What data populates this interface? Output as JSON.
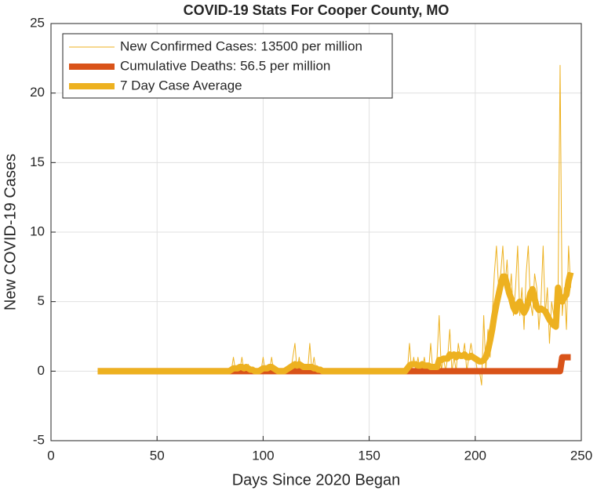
{
  "chart_data": {
    "type": "line",
    "title": "COVID-19 Stats For Cooper County, MO",
    "xlabel": "Days Since 2020 Began",
    "ylabel": "New COVID-19 Cases",
    "xlim": [
      0,
      250
    ],
    "ylim": [
      -5,
      25
    ],
    "xticks": [
      0,
      50,
      100,
      150,
      200,
      250
    ],
    "yticks": [
      -5,
      0,
      5,
      10,
      15,
      20,
      25
    ],
    "grid": true,
    "legend": "upper left",
    "x": [
      22,
      23,
      24,
      25,
      26,
      27,
      28,
      29,
      30,
      31,
      32,
      33,
      34,
      35,
      36,
      37,
      38,
      39,
      40,
      41,
      42,
      43,
      44,
      45,
      46,
      47,
      48,
      49,
      50,
      51,
      52,
      53,
      54,
      55,
      56,
      57,
      58,
      59,
      60,
      61,
      62,
      63,
      64,
      65,
      66,
      67,
      68,
      69,
      70,
      71,
      72,
      73,
      74,
      75,
      76,
      77,
      78,
      79,
      80,
      81,
      82,
      83,
      84,
      85,
      86,
      87,
      88,
      89,
      90,
      91,
      92,
      93,
      94,
      95,
      96,
      97,
      98,
      99,
      100,
      101,
      102,
      103,
      104,
      105,
      106,
      107,
      108,
      109,
      110,
      111,
      112,
      113,
      114,
      115,
      116,
      117,
      118,
      119,
      120,
      121,
      122,
      123,
      124,
      125,
      126,
      127,
      128,
      129,
      130,
      131,
      132,
      133,
      134,
      135,
      136,
      137,
      138,
      139,
      140,
      141,
      142,
      143,
      144,
      145,
      146,
      147,
      148,
      149,
      150,
      151,
      152,
      153,
      154,
      155,
      156,
      157,
      158,
      159,
      160,
      161,
      162,
      163,
      164,
      165,
      166,
      167,
      168,
      169,
      170,
      171,
      172,
      173,
      174,
      175,
      176,
      177,
      178,
      179,
      180,
      181,
      182,
      183,
      184,
      185,
      186,
      187,
      188,
      189,
      190,
      191,
      192,
      193,
      194,
      195,
      196,
      197,
      198,
      199,
      200,
      201,
      202,
      203,
      204,
      205,
      206,
      207,
      208,
      209,
      210,
      211,
      212,
      213,
      214,
      215,
      216,
      217,
      218,
      219,
      220,
      221,
      222,
      223,
      224,
      225,
      226,
      227,
      228,
      229,
      230,
      231,
      232,
      233,
      234,
      235,
      236,
      237,
      238,
      239,
      240,
      241,
      242,
      243,
      244,
      245
    ],
    "series": [
      {
        "name": "New Confirmed Cases: 13500 per million",
        "color": "#edb120",
        "width": 1,
        "values": [
          0,
          0,
          0,
          0,
          0,
          0,
          0,
          0,
          0,
          0,
          0,
          0,
          0,
          0,
          0,
          0,
          0,
          0,
          0,
          0,
          0,
          0,
          0,
          0,
          0,
          0,
          0,
          0,
          0,
          0,
          0,
          0,
          0,
          0,
          0,
          0,
          0,
          0,
          0,
          0,
          0,
          0,
          0,
          0,
          0,
          0,
          0,
          0,
          0,
          0,
          0,
          0,
          0,
          0,
          0,
          0,
          0,
          0,
          0,
          0,
          0,
          0,
          0,
          0,
          1,
          0,
          0,
          0,
          1,
          0,
          0,
          0.5,
          0,
          0,
          0,
          0,
          0,
          0,
          1,
          0,
          0,
          0,
          1,
          0,
          0,
          0,
          0,
          0,
          0,
          0,
          0,
          0,
          1,
          2,
          0,
          1,
          0,
          0,
          0,
          0,
          2,
          0,
          1,
          0,
          0,
          0,
          0,
          0,
          0,
          0,
          0,
          0,
          0,
          0,
          0,
          0,
          0,
          0,
          0,
          0,
          0,
          0,
          0,
          0,
          0,
          0,
          0,
          0,
          0,
          0,
          0,
          0,
          0,
          0,
          0,
          0,
          0,
          0,
          0,
          0,
          0,
          0,
          0,
          0,
          0,
          0,
          0,
          2,
          0,
          1,
          0,
          1,
          0,
          0,
          1,
          0,
          0,
          2,
          0,
          0,
          1,
          4,
          0,
          1,
          0,
          1,
          3,
          0,
          1,
          0,
          2,
          1,
          1,
          2,
          0,
          1,
          2,
          1,
          1,
          0,
          0,
          -1,
          4,
          0,
          3,
          1,
          4,
          7,
          9,
          6,
          7,
          9,
          6,
          8,
          5,
          7,
          4,
          6,
          9,
          4,
          6,
          3,
          7,
          9,
          5,
          4,
          7,
          6,
          3,
          5,
          9,
          4,
          6,
          2,
          5,
          4,
          3,
          5,
          22,
          4,
          6,
          3,
          9,
          6
        ]
      },
      {
        "name": "Cumulative Deaths: 56.5 per million",
        "color": "#d95319",
        "width": 8,
        "values": [
          0,
          0,
          0,
          0,
          0,
          0,
          0,
          0,
          0,
          0,
          0,
          0,
          0,
          0,
          0,
          0,
          0,
          0,
          0,
          0,
          0,
          0,
          0,
          0,
          0,
          0,
          0,
          0,
          0,
          0,
          0,
          0,
          0,
          0,
          0,
          0,
          0,
          0,
          0,
          0,
          0,
          0,
          0,
          0,
          0,
          0,
          0,
          0,
          0,
          0,
          0,
          0,
          0,
          0,
          0,
          0,
          0,
          0,
          0,
          0,
          0,
          0,
          0,
          0,
          0,
          0,
          0,
          0,
          0,
          0,
          0,
          0,
          0,
          0,
          0,
          0,
          0,
          0,
          0,
          0,
          0,
          0,
          0,
          0,
          0,
          0,
          0,
          0,
          0,
          0,
          0,
          0,
          0,
          0,
          0,
          0,
          0,
          0,
          0,
          0,
          0,
          0,
          0,
          0,
          0,
          0,
          0,
          0,
          0,
          0,
          0,
          0,
          0,
          0,
          0,
          0,
          0,
          0,
          0,
          0,
          0,
          0,
          0,
          0,
          0,
          0,
          0,
          0,
          0,
          0,
          0,
          0,
          0,
          0,
          0,
          0,
          0,
          0,
          0,
          0,
          0,
          0,
          0,
          0,
          0,
          0,
          0,
          0,
          0,
          0,
          0,
          0,
          0,
          0,
          0,
          0,
          0,
          0,
          0,
          0,
          0,
          0,
          0,
          0,
          0,
          0,
          0,
          0,
          0,
          0,
          0,
          0,
          0,
          0,
          0,
          0,
          0,
          0,
          0,
          0,
          0,
          0,
          0,
          0,
          0,
          0,
          0,
          0,
          0,
          0,
          0,
          0,
          0,
          0,
          0,
          0,
          0,
          0,
          0,
          0,
          0,
          0,
          0,
          0,
          0,
          0,
          0,
          0,
          0,
          0,
          0,
          0,
          0,
          0,
          0,
          0,
          0,
          0,
          0,
          1,
          1,
          1,
          1,
          1
        ]
      },
      {
        "name": "7 Day Case Average",
        "color": "#edb120",
        "width": 8,
        "values": [
          0,
          0,
          0,
          0,
          0,
          0,
          0,
          0,
          0,
          0,
          0,
          0,
          0,
          0,
          0,
          0,
          0,
          0,
          0,
          0,
          0,
          0,
          0,
          0,
          0,
          0,
          0,
          0,
          0,
          0,
          0,
          0,
          0,
          0,
          0,
          0,
          0,
          0,
          0,
          0,
          0,
          0,
          0,
          0,
          0,
          0,
          0,
          0,
          0,
          0,
          0,
          0,
          0,
          0,
          0,
          0,
          0,
          0,
          0,
          0,
          0,
          0,
          0,
          0.1,
          0.2,
          0.2,
          0.2,
          0.3,
          0.3,
          0.2,
          0.3,
          0.2,
          0.1,
          0.1,
          0,
          0,
          0,
          0.1,
          0.2,
          0.2,
          0.2,
          0.3,
          0.3,
          0.2,
          0.1,
          0,
          0,
          0,
          0,
          0.1,
          0.2,
          0.3,
          0.4,
          0.5,
          0.4,
          0.5,
          0.4,
          0.3,
          0.3,
          0.3,
          0.3,
          0.3,
          0.2,
          0.2,
          0.1,
          0.1,
          0,
          0,
          0,
          0,
          0,
          0,
          0,
          0,
          0,
          0,
          0,
          0,
          0,
          0,
          0,
          0,
          0,
          0,
          0,
          0,
          0,
          0,
          0,
          0,
          0,
          0,
          0,
          0,
          0,
          0,
          0,
          0,
          0,
          0,
          0,
          0,
          0,
          0,
          0,
          0,
          0.2,
          0.4,
          0.5,
          0.5,
          0.5,
          0.4,
          0.4,
          0.5,
          0.4,
          0.4,
          0.4,
          0.3,
          0.3,
          0.3,
          0.3,
          0.8,
          0.8,
          0.9,
          0.9,
          0.9,
          1.2,
          1.1,
          1.2,
          1,
          1.2,
          1.1,
          1.1,
          1.2,
          1,
          1,
          1.1,
          1,
          0.9,
          0.8,
          0.7,
          0.7,
          0.8,
          1,
          1.5,
          2.2,
          3,
          4,
          4.8,
          5.5,
          6.2,
          6.8,
          6.8,
          6.2,
          5.6,
          5.2,
          4.6,
          4.3,
          4.8,
          5,
          4.6,
          4.2,
          4.5,
          5,
          5.6,
          5.9,
          5.2,
          4.6,
          4.4,
          4.5,
          4.4,
          4.3,
          4,
          3.7,
          3.5,
          3.3,
          3.2,
          6,
          5.2,
          5,
          5.3,
          5.5,
          6.5,
          7.1
        ]
      }
    ]
  }
}
